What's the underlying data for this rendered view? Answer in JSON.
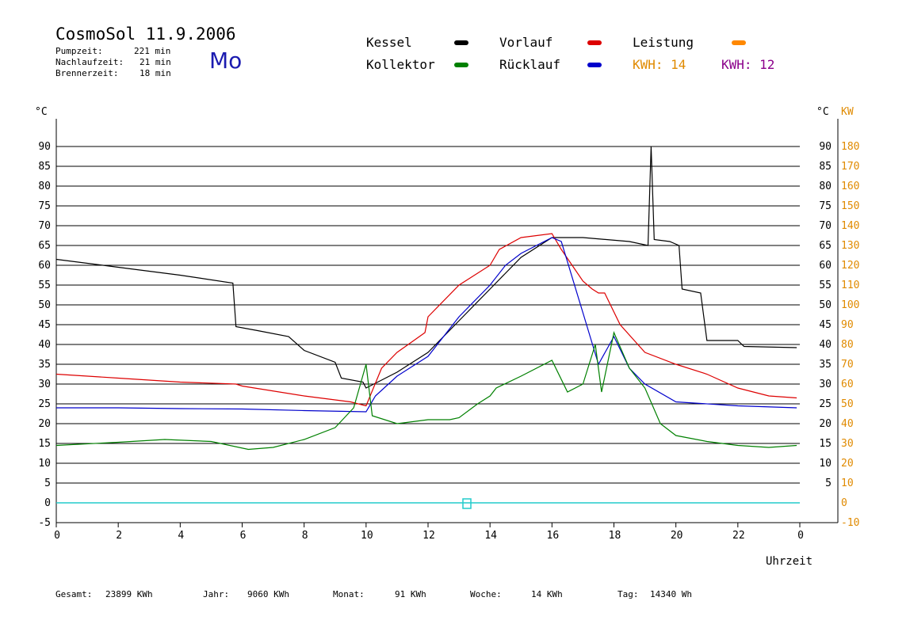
{
  "header": {
    "title": "CosmoSol 11.9.2006",
    "day": "Mo",
    "stats": [
      {
        "label": "Pumpzeit:",
        "value": "221 min"
      },
      {
        "label": "Nachlaufzeit:",
        "value": "21 min"
      },
      {
        "label": "Brennerzeit:",
        "value": "18 min"
      }
    ]
  },
  "legend": {
    "kessel": {
      "label": "Kessel",
      "color": "#000000"
    },
    "vorlauf": {
      "label": "Vorlauf",
      "color": "#dd0000"
    },
    "leistung": {
      "label": "Leistung",
      "color": "#ff8800"
    },
    "kollektor": {
      "label": "Kollektor",
      "color": "#008000"
    },
    "ruecklauf": {
      "label": "Rücklauf",
      "color": "#0000cc"
    },
    "kwh1": {
      "label": "KWH: 14",
      "color": "#e08a00"
    },
    "kwh2": {
      "label": "KWH: 12",
      "color": "#8b008b"
    }
  },
  "footer": {
    "gesamt_label": "Gesamt:",
    "gesamt_value": "23899 KWh",
    "jahr_label": "Jahr:",
    "jahr_value": "9060 KWh",
    "monat_label": "Monat:",
    "monat_value": "91 KWh",
    "woche_label": "Woche:",
    "woche_value": "14 KWh",
    "tag_label": "Tag:",
    "tag_value": "14340 Wh"
  },
  "chart_data": {
    "type": "line",
    "xlabel": "Uhrzeit",
    "ylabel_left": "°C",
    "ylabel_right_1": "°C",
    "ylabel_right_2": "KW",
    "xlim": [
      0,
      24
    ],
    "ylim": [
      -5,
      95
    ],
    "y2lim": [
      -10,
      190
    ],
    "x_ticks": [
      "0",
      "2",
      "4",
      "6",
      "8",
      "10",
      "12",
      "14",
      "16",
      "18",
      "20",
      "22",
      "0"
    ],
    "y_ticks": [
      "-5",
      "0",
      "5",
      "10",
      "15",
      "20",
      "25",
      "30",
      "35",
      "40",
      "45",
      "50",
      "55",
      "60",
      "65",
      "70",
      "75",
      "80",
      "85",
      "90"
    ],
    "y2_ticks": [
      "-10",
      "0",
      "10",
      "20",
      "30",
      "40",
      "50",
      "60",
      "70",
      "80",
      "90",
      "100",
      "110",
      "120",
      "130",
      "140",
      "150",
      "160",
      "170",
      "180"
    ],
    "grid": true,
    "series": [
      {
        "key": "kessel",
        "color": "#000000",
        "points": [
          [
            0,
            61.5
          ],
          [
            2,
            59.5
          ],
          [
            4,
            57.5
          ],
          [
            5.7,
            55.5
          ],
          [
            5.8,
            44.5
          ],
          [
            6.5,
            43.5
          ],
          [
            7.5,
            42
          ],
          [
            8,
            38.5
          ],
          [
            9,
            35.5
          ],
          [
            9.2,
            31.5
          ],
          [
            9.9,
            30.5
          ],
          [
            10,
            29
          ],
          [
            10.5,
            31
          ],
          [
            11,
            33
          ],
          [
            12,
            38
          ],
          [
            13,
            46
          ],
          [
            14,
            54
          ],
          [
            15,
            62
          ],
          [
            16,
            67
          ],
          [
            17,
            67
          ],
          [
            18.5,
            66
          ],
          [
            19.1,
            65
          ],
          [
            19.2,
            90
          ],
          [
            19.3,
            66.5
          ],
          [
            19.8,
            66
          ],
          [
            20.1,
            65
          ],
          [
            20.2,
            54
          ],
          [
            20.8,
            53
          ],
          [
            21,
            41
          ],
          [
            22,
            41
          ],
          [
            22.2,
            39.5
          ],
          [
            23.9,
            39.2
          ]
        ]
      },
      {
        "key": "vorlauf",
        "color": "#dd0000",
        "points": [
          [
            0,
            32.5
          ],
          [
            2,
            31.5
          ],
          [
            4,
            30.5
          ],
          [
            5.8,
            30
          ],
          [
            6,
            29.5
          ],
          [
            8,
            27
          ],
          [
            9.5,
            25.5
          ],
          [
            10,
            24.5
          ],
          [
            10.5,
            34
          ],
          [
            11,
            38
          ],
          [
            11.9,
            43
          ],
          [
            12,
            47
          ],
          [
            13,
            55
          ],
          [
            14,
            60
          ],
          [
            14.3,
            64
          ],
          [
            15,
            67
          ],
          [
            16,
            68
          ],
          [
            16.3,
            64
          ],
          [
            17,
            56
          ],
          [
            17.3,
            54
          ],
          [
            17.5,
            53
          ],
          [
            17.7,
            53
          ],
          [
            18.2,
            45
          ],
          [
            19,
            38
          ],
          [
            20,
            35
          ],
          [
            21,
            32.5
          ],
          [
            22,
            29
          ],
          [
            23,
            27
          ],
          [
            23.9,
            26.5
          ]
        ]
      },
      {
        "key": "ruecklauf",
        "color": "#0000cc",
        "points": [
          [
            0,
            24
          ],
          [
            2,
            24
          ],
          [
            4,
            23.8
          ],
          [
            6,
            23.7
          ],
          [
            8,
            23.3
          ],
          [
            10,
            23
          ],
          [
            10.3,
            27
          ],
          [
            11,
            32
          ],
          [
            12,
            37
          ],
          [
            13,
            47
          ],
          [
            14,
            55
          ],
          [
            14.5,
            60
          ],
          [
            15,
            63
          ],
          [
            16,
            67
          ],
          [
            16.3,
            66
          ],
          [
            17,
            48
          ],
          [
            17.5,
            35
          ],
          [
            18,
            42
          ],
          [
            18.5,
            34
          ],
          [
            19,
            30
          ],
          [
            20,
            25.5
          ],
          [
            22,
            24.5
          ],
          [
            23.9,
            24
          ]
        ]
      },
      {
        "key": "kollektor",
        "color": "#008000",
        "points": [
          [
            0,
            14.5
          ],
          [
            2,
            15.3
          ],
          [
            3.5,
            16
          ],
          [
            5,
            15.5
          ],
          [
            6.2,
            13.5
          ],
          [
            7,
            14
          ],
          [
            8,
            16
          ],
          [
            9,
            19
          ],
          [
            9.6,
            24
          ],
          [
            10,
            35
          ],
          [
            10.2,
            22
          ],
          [
            11,
            20
          ],
          [
            12,
            21
          ],
          [
            12.7,
            21
          ],
          [
            13,
            21.5
          ],
          [
            13.6,
            25
          ],
          [
            14,
            27
          ],
          [
            14.2,
            29
          ],
          [
            15,
            32
          ],
          [
            16,
            36
          ],
          [
            16.5,
            28
          ],
          [
            17,
            30
          ],
          [
            17.4,
            40
          ],
          [
            17.6,
            28
          ],
          [
            18,
            43
          ],
          [
            18.5,
            34
          ],
          [
            19,
            29
          ],
          [
            19.5,
            20
          ],
          [
            20,
            17
          ],
          [
            21,
            15.5
          ],
          [
            22,
            14.5
          ],
          [
            23,
            14
          ],
          [
            23.9,
            14.5
          ]
        ]
      }
    ]
  }
}
